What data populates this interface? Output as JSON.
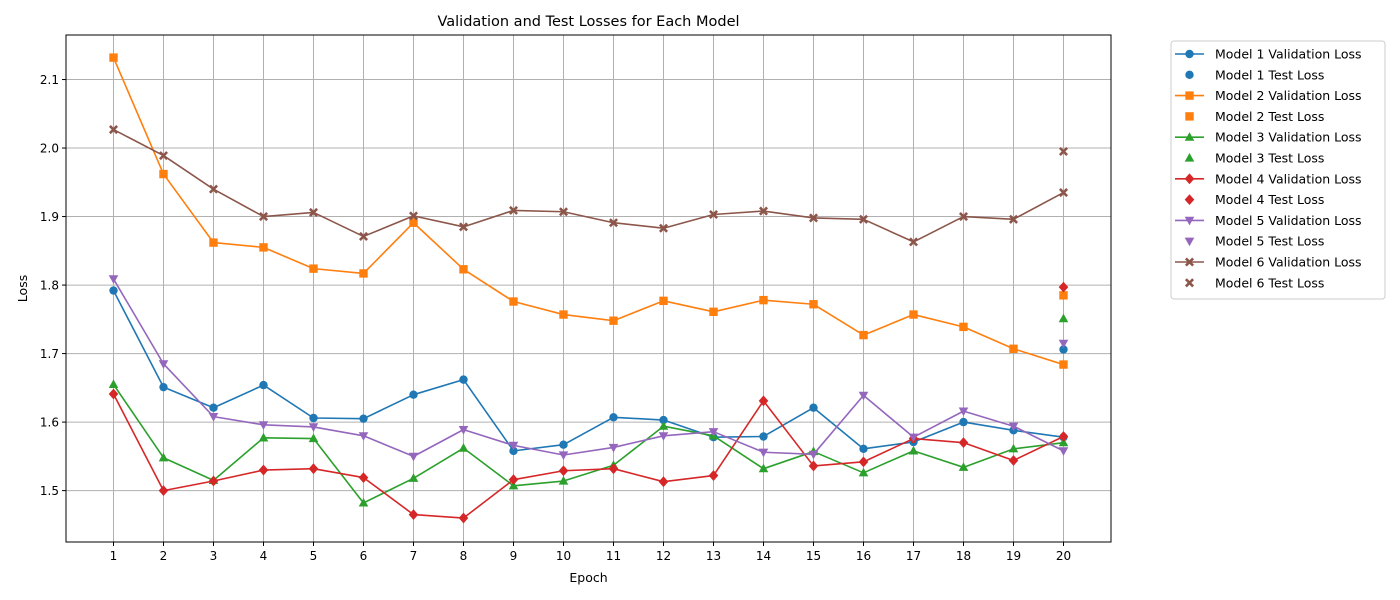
{
  "chart_data": {
    "type": "line",
    "title": "Validation and Test Losses for Each Model",
    "xlabel": "Epoch",
    "ylabel": "Loss",
    "x": [
      1,
      2,
      3,
      4,
      5,
      6,
      7,
      8,
      9,
      10,
      11,
      12,
      13,
      14,
      15,
      16,
      17,
      18,
      19,
      20
    ],
    "ylim": [
      1.425,
      2.165
    ],
    "yticks": [
      1.5,
      1.6,
      1.7,
      1.8,
      1.9,
      2.0,
      2.1
    ],
    "grid": true,
    "legend_position": "outside-right",
    "series": [
      {
        "name": "Model 1 Validation Loss",
        "color": "#1f77b4",
        "marker": "circle",
        "values": [
          1.792,
          1.651,
          1.621,
          1.654,
          1.606,
          1.605,
          1.64,
          1.662,
          1.558,
          1.567,
          1.607,
          1.603,
          1.578,
          1.579,
          1.621,
          1.561,
          1.571,
          1.6,
          1.588,
          1.578
        ]
      },
      {
        "name": "Model 2 Validation Loss",
        "color": "#ff7f0e",
        "marker": "square",
        "values": [
          2.132,
          1.962,
          1.862,
          1.855,
          1.824,
          1.817,
          1.891,
          1.823,
          1.776,
          1.757,
          1.748,
          1.777,
          1.761,
          1.778,
          1.772,
          1.727,
          1.757,
          1.739,
          1.707,
          1.684
        ]
      },
      {
        "name": "Model 3 Validation Loss",
        "color": "#2ca02c",
        "marker": "triangle-up",
        "values": [
          1.655,
          1.548,
          1.515,
          1.577,
          1.576,
          1.482,
          1.518,
          1.562,
          1.507,
          1.514,
          1.537,
          1.594,
          1.58,
          1.532,
          1.557,
          1.526,
          1.558,
          1.534,
          1.561,
          1.57
        ]
      },
      {
        "name": "Model 4 Validation Loss",
        "color": "#d62728",
        "marker": "diamond",
        "values": [
          1.641,
          1.5,
          1.514,
          1.53,
          1.532,
          1.519,
          1.465,
          1.46,
          1.516,
          1.529,
          1.532,
          1.513,
          1.522,
          1.631,
          1.536,
          1.542,
          1.576,
          1.57,
          1.544,
          1.579
        ]
      },
      {
        "name": "Model 5 Validation Loss",
        "color": "#9467bd",
        "marker": "triangle-down",
        "values": [
          1.809,
          1.685,
          1.608,
          1.596,
          1.593,
          1.58,
          1.55,
          1.589,
          1.566,
          1.552,
          1.563,
          1.58,
          1.586,
          1.556,
          1.553,
          1.639,
          1.578,
          1.616,
          1.594,
          1.558
        ]
      },
      {
        "name": "Model 6 Validation Loss",
        "color": "#8c564b",
        "marker": "x",
        "values": [
          2.027,
          1.989,
          1.94,
          1.9,
          1.906,
          1.871,
          1.901,
          1.885,
          1.909,
          1.907,
          1.891,
          1.883,
          1.903,
          1.908,
          1.898,
          1.896,
          1.863,
          1.9,
          1.896,
          1.935
        ]
      }
    ],
    "test_points": [
      {
        "name": "Model 1 Test Loss",
        "color": "#1f77b4",
        "marker": "circle",
        "x": 20,
        "value": 1.706
      },
      {
        "name": "Model 2 Test Loss",
        "color": "#ff7f0e",
        "marker": "square",
        "x": 20,
        "value": 1.785
      },
      {
        "name": "Model 3 Test Loss",
        "color": "#2ca02c",
        "marker": "triangle-up",
        "x": 20,
        "value": 1.751
      },
      {
        "name": "Model 4 Test Loss",
        "color": "#d62728",
        "marker": "diamond",
        "x": 20,
        "value": 1.797
      },
      {
        "name": "Model 5 Test Loss",
        "color": "#9467bd",
        "marker": "triangle-down",
        "x": 20,
        "value": 1.715
      },
      {
        "name": "Model 6 Test Loss",
        "color": "#8c564b",
        "marker": "x",
        "x": 20,
        "value": 1.995
      }
    ]
  }
}
